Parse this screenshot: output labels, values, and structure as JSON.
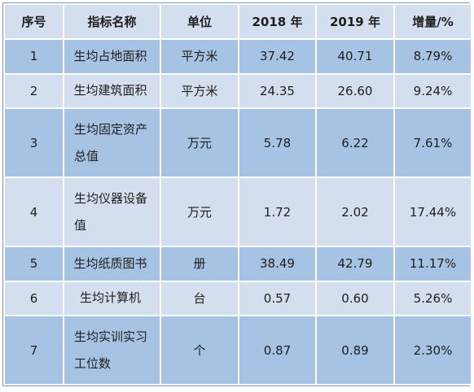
{
  "table": {
    "headers": [
      "序号",
      "指标名称",
      "单位",
      "2018 年",
      "2019 年",
      "增量/%"
    ],
    "rows": [
      {
        "no": "1",
        "name": "生均占地面积",
        "unit": "平方米",
        "y2018": "37.42",
        "y2019": "40.71",
        "inc": "8.79%"
      },
      {
        "no": "2",
        "name": "生均建筑面积",
        "unit": "平方米",
        "y2018": "24.35",
        "y2019": "26.60",
        "inc": "9.24%"
      },
      {
        "no": "3",
        "name": "生均固定资产总值",
        "unit": "万元",
        "y2018": "5.78",
        "y2019": "6.22",
        "inc": "7.61%"
      },
      {
        "no": "4",
        "name": "生均仪器设备值",
        "unit": "万元",
        "y2018": "1.72",
        "y2019": "2.02",
        "inc": "17.44%"
      },
      {
        "no": "5",
        "name": "生均纸质图书",
        "unit": "册",
        "y2018": "38.49",
        "y2019": "42.79",
        "inc": "11.17%"
      },
      {
        "no": "6",
        "name": "生均计算机",
        "unit": "台",
        "y2018": "0.57",
        "y2019": "0.60",
        "inc": "5.26%"
      },
      {
        "no": "7",
        "name": "生均实训实习工位数",
        "unit": "个",
        "y2018": "0.87",
        "y2019": "0.89",
        "inc": "2.30%"
      }
    ]
  },
  "colors": {
    "header_bg": "#d3dfee",
    "row_dark": "#a6c3e3",
    "row_light": "#d3dfee",
    "border": "#ffffff"
  }
}
